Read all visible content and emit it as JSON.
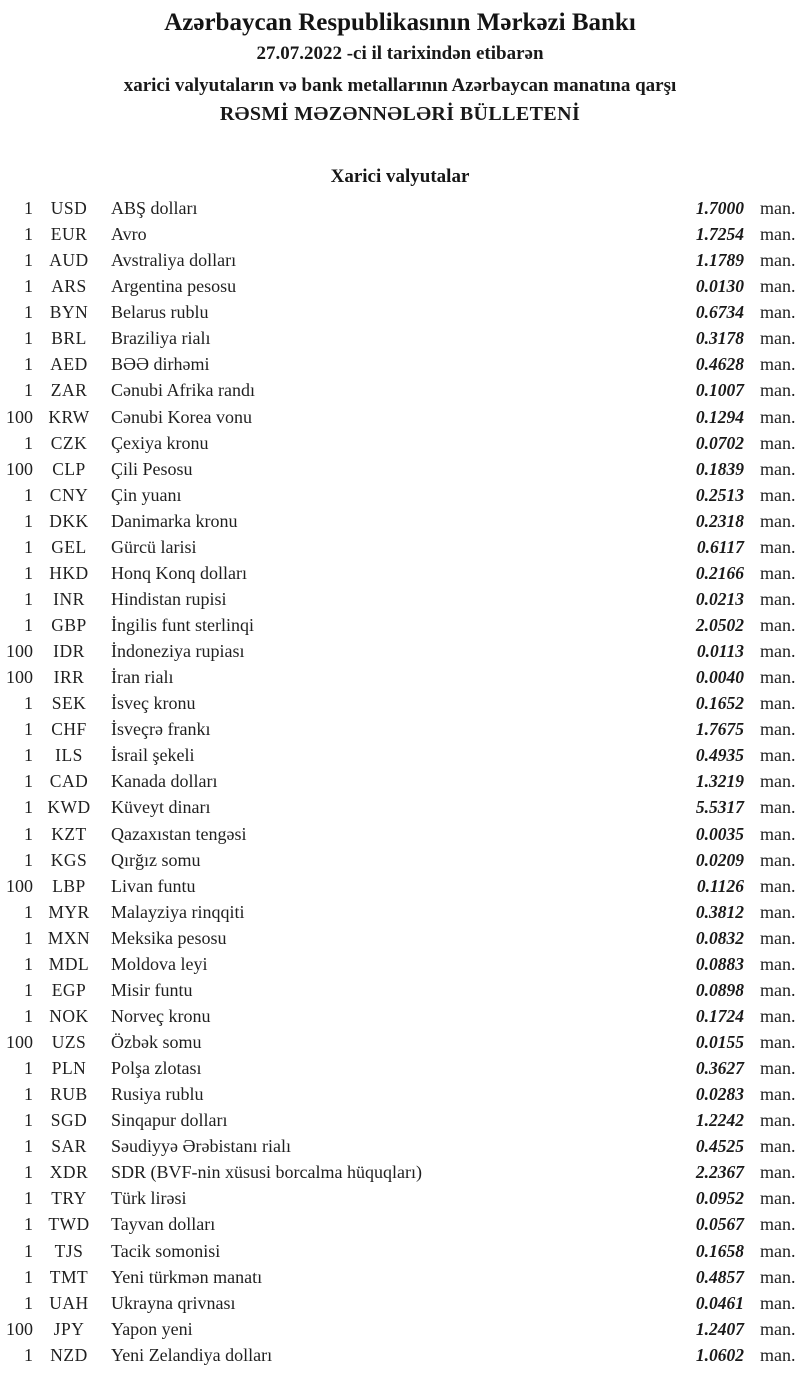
{
  "header": {
    "title": "Azərbaycan Respublikasının Mərkəzi Bankı",
    "date_line": "27.07.2022 -ci il tarixindən etibarən",
    "subtitle": "xarici valyutaların və bank metallarının Azərbaycan manatına qarşı",
    "bulletin_line": "RƏSMİ MƏZƏNNƏLƏRİ BÜLLETENİ"
  },
  "section": {
    "title": "Xarici valyutalar"
  },
  "table": {
    "unit_label": "man.",
    "rows": [
      {
        "qty": "1",
        "code": "USD",
        "name": "ABŞ dolları",
        "rate": "1.7000"
      },
      {
        "qty": "1",
        "code": "EUR",
        "name": "Avro",
        "rate": "1.7254"
      },
      {
        "qty": "1",
        "code": "AUD",
        "name": "Avstraliya dolları",
        "rate": "1.1789"
      },
      {
        "qty": "1",
        "code": "ARS",
        "name": "Argentina pesosu",
        "rate": "0.0130"
      },
      {
        "qty": "1",
        "code": "BYN",
        "name": "Belarus rublu",
        "rate": "0.6734"
      },
      {
        "qty": "1",
        "code": "BRL",
        "name": "Braziliya rialı",
        "rate": "0.3178"
      },
      {
        "qty": "1",
        "code": "AED",
        "name": "BƏƏ dirhəmi",
        "rate": "0.4628"
      },
      {
        "qty": "1",
        "code": "ZAR",
        "name": "Cənubi Afrika randı",
        "rate": "0.1007"
      },
      {
        "qty": "100",
        "code": "KRW",
        "name": "Cənubi Korea vonu",
        "rate": "0.1294"
      },
      {
        "qty": "1",
        "code": "CZK",
        "name": "Çexiya kronu",
        "rate": "0.0702"
      },
      {
        "qty": "100",
        "code": "CLP",
        "name": "Çili Pesosu",
        "rate": "0.1839"
      },
      {
        "qty": "1",
        "code": "CNY",
        "name": "Çin yuanı",
        "rate": "0.2513"
      },
      {
        "qty": "1",
        "code": "DKK",
        "name": "Danimarka kronu",
        "rate": "0.2318"
      },
      {
        "qty": "1",
        "code": "GEL",
        "name": "Gürcü larisi",
        "rate": "0.6117"
      },
      {
        "qty": "1",
        "code": "HKD",
        "name": "Honq Konq dolları",
        "rate": "0.2166"
      },
      {
        "qty": "1",
        "code": "INR",
        "name": "Hindistan rupisi",
        "rate": "0.0213"
      },
      {
        "qty": "1",
        "code": "GBP",
        "name": "İngilis funt sterlinqi",
        "rate": "2.0502"
      },
      {
        "qty": "100",
        "code": "IDR",
        "name": "İndoneziya rupiası",
        "rate": "0.0113"
      },
      {
        "qty": "100",
        "code": "IRR",
        "name": "İran rialı",
        "rate": "0.0040"
      },
      {
        "qty": "1",
        "code": "SEK",
        "name": "İsveç kronu",
        "rate": "0.1652"
      },
      {
        "qty": "1",
        "code": "CHF",
        "name": "İsveçrə frankı",
        "rate": "1.7675"
      },
      {
        "qty": "1",
        "code": "ILS",
        "name": "İsrail şekeli",
        "rate": "0.4935"
      },
      {
        "qty": "1",
        "code": "CAD",
        "name": "Kanada dolları",
        "rate": "1.3219"
      },
      {
        "qty": "1",
        "code": "KWD",
        "name": "Küveyt dinarı",
        "rate": "5.5317"
      },
      {
        "qty": "1",
        "code": "KZT",
        "name": "Qazaxıstan tengəsi",
        "rate": "0.0035"
      },
      {
        "qty": "1",
        "code": "KGS",
        "name": "Qırğız somu",
        "rate": "0.0209"
      },
      {
        "qty": "100",
        "code": "LBP",
        "name": "Livan funtu",
        "rate": "0.1126"
      },
      {
        "qty": "1",
        "code": "MYR",
        "name": "Malayziya rinqqiti",
        "rate": "0.3812"
      },
      {
        "qty": "1",
        "code": "MXN",
        "name": "Meksika pesosu",
        "rate": "0.0832"
      },
      {
        "qty": "1",
        "code": "MDL",
        "name": "Moldova leyi",
        "rate": "0.0883"
      },
      {
        "qty": "1",
        "code": "EGP",
        "name": "Misir funtu",
        "rate": "0.0898"
      },
      {
        "qty": "1",
        "code": "NOK",
        "name": "Norveç kronu",
        "rate": "0.1724"
      },
      {
        "qty": "100",
        "code": "UZS",
        "name": "Özbək somu",
        "rate": "0.0155"
      },
      {
        "qty": "1",
        "code": "PLN",
        "name": "Polşa zlotası",
        "rate": "0.3627"
      },
      {
        "qty": "1",
        "code": "RUB",
        "name": "Rusiya rublu",
        "rate": "0.0283"
      },
      {
        "qty": "1",
        "code": "SGD",
        "name": "Sinqapur dolları",
        "rate": "1.2242"
      },
      {
        "qty": "1",
        "code": "SAR",
        "name": "Səudiyyə Ərəbistanı rialı",
        "rate": "0.4525"
      },
      {
        "qty": "1",
        "code": "XDR",
        "name": "SDR (BVF-nin xüsusi borcalma hüquqları)",
        "rate": "2.2367"
      },
      {
        "qty": "1",
        "code": "TRY",
        "name": "Türk lirəsi",
        "rate": "0.0952"
      },
      {
        "qty": "1",
        "code": "TWD",
        "name": "Tayvan dolları",
        "rate": "0.0567"
      },
      {
        "qty": "1",
        "code": "TJS",
        "name": "Tacik somonisi",
        "rate": "0.1658"
      },
      {
        "qty": "1",
        "code": "TMT",
        "name": "Yeni türkmən manatı",
        "rate": "0.4857"
      },
      {
        "qty": "1",
        "code": "UAH",
        "name": "Ukrayna qrivnası",
        "rate": "0.0461"
      },
      {
        "qty": "100",
        "code": "JPY",
        "name": "Yapon yeni",
        "rate": "1.2407"
      },
      {
        "qty": "1",
        "code": "NZD",
        "name": "Yeni Zelandiya dolları",
        "rate": "1.0602"
      }
    ]
  },
  "colors": {
    "text": "#1f1f1f",
    "background": "#ffffff"
  }
}
